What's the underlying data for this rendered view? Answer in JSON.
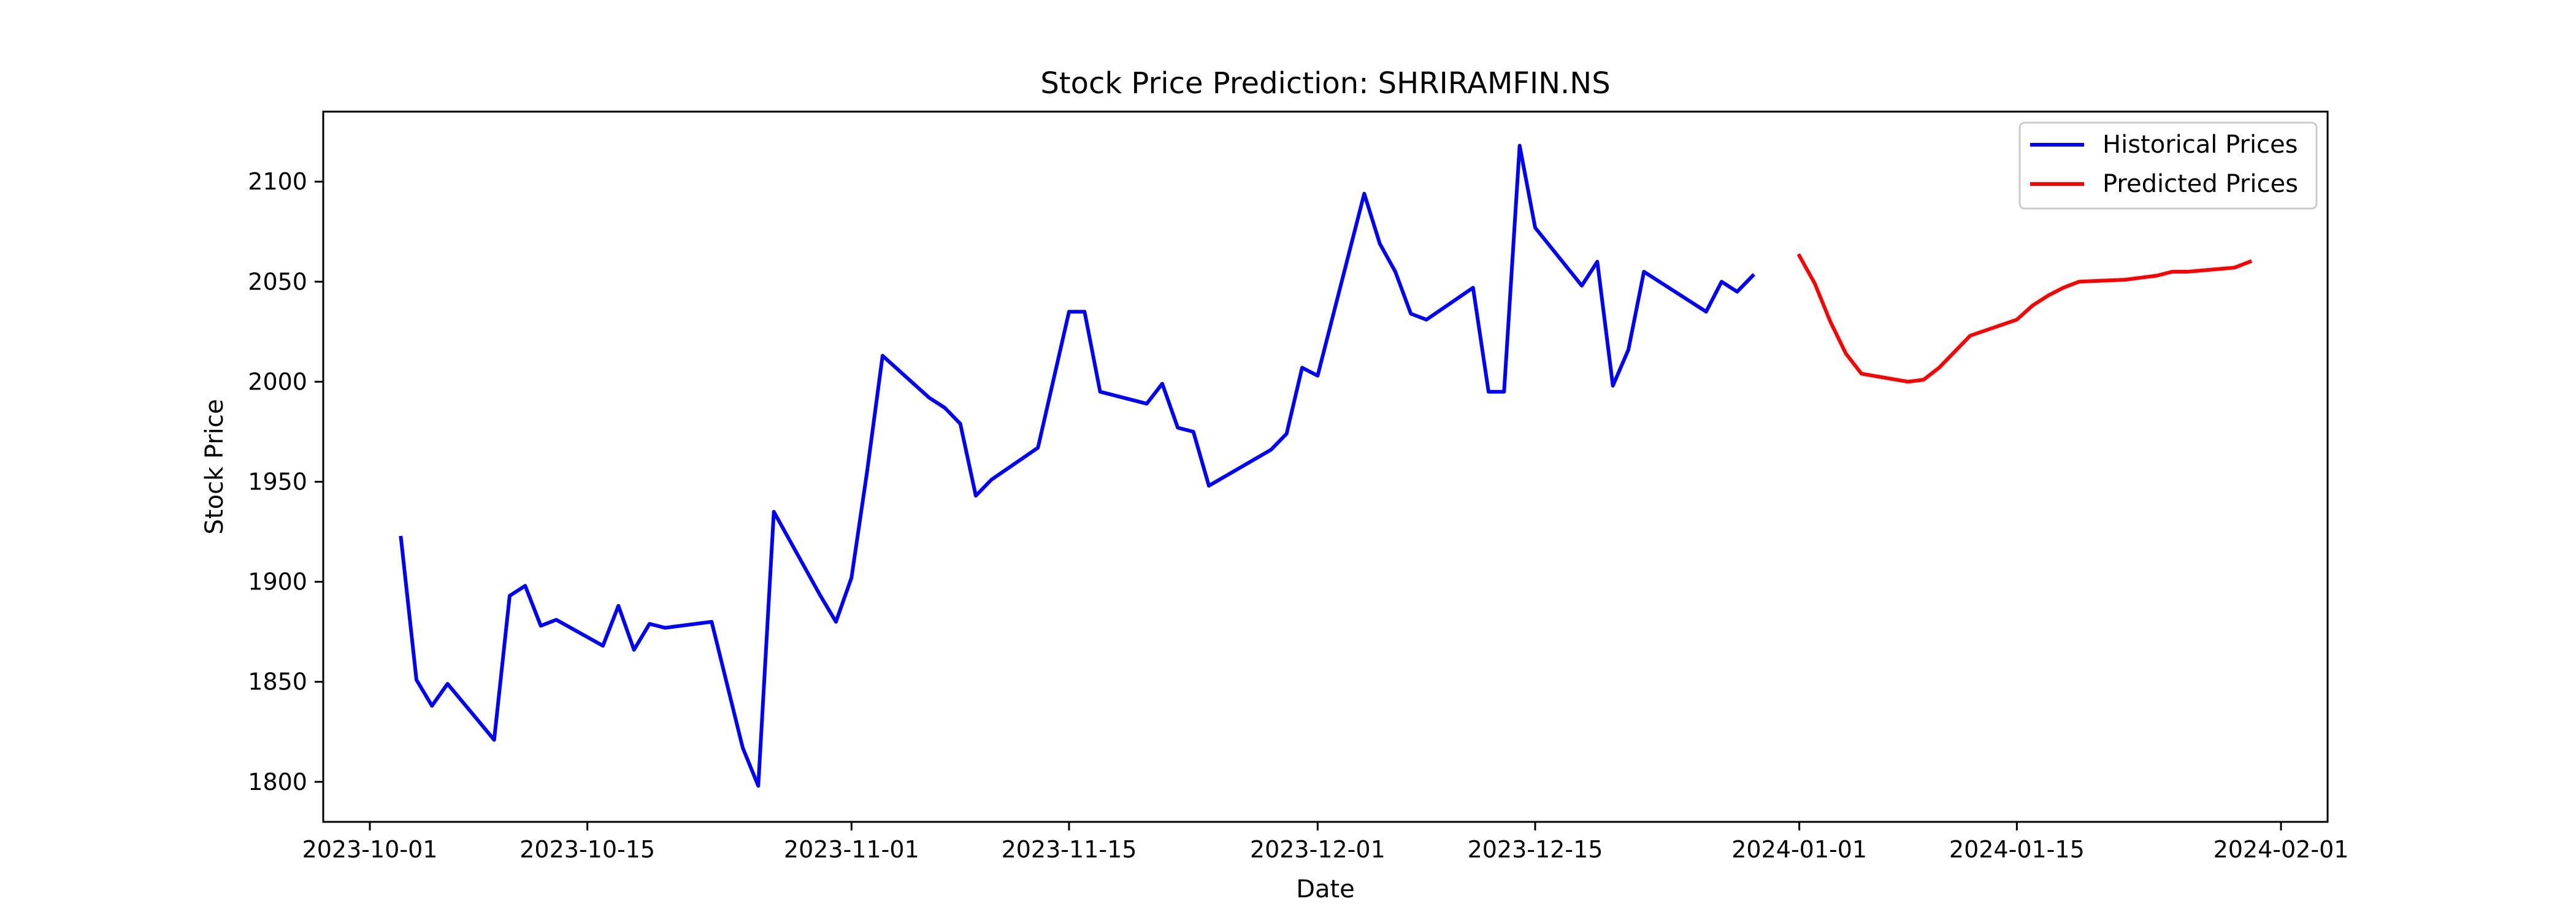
{
  "chart_data": {
    "type": "line",
    "title": "Stock Price Prediction: SHRIRAMFIN.NS",
    "xlabel": "Date",
    "ylabel": "Stock Price",
    "xlim": [
      "2023-09-28",
      "2024-02-04"
    ],
    "ylim": [
      1780,
      2135
    ],
    "x_ticks": [
      "2023-10-01",
      "2023-10-15",
      "2023-11-01",
      "2023-11-15",
      "2023-12-01",
      "2023-12-15",
      "2024-01-01",
      "2024-01-15",
      "2024-02-01"
    ],
    "y_ticks": [
      1800,
      1850,
      1900,
      1950,
      2000,
      2050,
      2100
    ],
    "grid": false,
    "legend_position": "top-right",
    "series": [
      {
        "name": "Historical Prices",
        "color": "#0000ff",
        "points": [
          [
            "2023-10-03",
            1922
          ],
          [
            "2023-10-04",
            1851
          ],
          [
            "2023-10-05",
            1838
          ],
          [
            "2023-10-06",
            1849
          ],
          [
            "2023-10-09",
            1821
          ],
          [
            "2023-10-10",
            1893
          ],
          [
            "2023-10-11",
            1898
          ],
          [
            "2023-10-12",
            1878
          ],
          [
            "2023-10-13",
            1881
          ],
          [
            "2023-10-16",
            1868
          ],
          [
            "2023-10-17",
            1888
          ],
          [
            "2023-10-18",
            1866
          ],
          [
            "2023-10-19",
            1879
          ],
          [
            "2023-10-20",
            1877
          ],
          [
            "2023-10-23",
            1880
          ],
          [
            "2023-10-25",
            1817
          ],
          [
            "2023-10-26",
            1798
          ],
          [
            "2023-10-27",
            1935
          ],
          [
            "2023-10-30",
            1893
          ],
          [
            "2023-10-31",
            1880
          ],
          [
            "2023-11-01",
            1902
          ],
          [
            "2023-11-02",
            1955
          ],
          [
            "2023-11-03",
            2013
          ],
          [
            "2023-11-06",
            1992
          ],
          [
            "2023-11-07",
            1987
          ],
          [
            "2023-11-08",
            1979
          ],
          [
            "2023-11-09",
            1943
          ],
          [
            "2023-11-10",
            1951
          ],
          [
            "2023-11-13",
            1967
          ],
          [
            "2023-11-15",
            2035
          ],
          [
            "2023-11-16",
            2035
          ],
          [
            "2023-11-17",
            1995
          ],
          [
            "2023-11-20",
            1989
          ],
          [
            "2023-11-21",
            1999
          ],
          [
            "2023-11-22",
            1977
          ],
          [
            "2023-11-23",
            1975
          ],
          [
            "2023-11-24",
            1948
          ],
          [
            "2023-11-28",
            1966
          ],
          [
            "2023-11-29",
            1974
          ],
          [
            "2023-11-30",
            2007
          ],
          [
            "2023-12-01",
            2003
          ],
          [
            "2023-12-04",
            2094
          ],
          [
            "2023-12-05",
            2069
          ],
          [
            "2023-12-06",
            2055
          ],
          [
            "2023-12-07",
            2034
          ],
          [
            "2023-12-08",
            2031
          ],
          [
            "2023-12-11",
            2047
          ],
          [
            "2023-12-12",
            1995
          ],
          [
            "2023-12-13",
            1995
          ],
          [
            "2023-12-14",
            2118
          ],
          [
            "2023-12-15",
            2077
          ],
          [
            "2023-12-18",
            2048
          ],
          [
            "2023-12-19",
            2060
          ],
          [
            "2023-12-20",
            1998
          ],
          [
            "2023-12-21",
            2016
          ],
          [
            "2023-12-22",
            2055
          ],
          [
            "2023-12-26",
            2035
          ],
          [
            "2023-12-27",
            2050
          ],
          [
            "2023-12-28",
            2045
          ],
          [
            "2023-12-29",
            2053
          ]
        ]
      },
      {
        "name": "Predicted Prices",
        "color": "#ff0000",
        "points": [
          [
            "2024-01-01",
            2063
          ],
          [
            "2024-01-02",
            2049
          ],
          [
            "2024-01-03",
            2030
          ],
          [
            "2024-01-04",
            2014
          ],
          [
            "2024-01-05",
            2004
          ],
          [
            "2024-01-08",
            2000
          ],
          [
            "2024-01-09",
            2001
          ],
          [
            "2024-01-10",
            2007
          ],
          [
            "2024-01-11",
            2015
          ],
          [
            "2024-01-12",
            2023
          ],
          [
            "2024-01-15",
            2031
          ],
          [
            "2024-01-16",
            2038
          ],
          [
            "2024-01-17",
            2043
          ],
          [
            "2024-01-18",
            2047
          ],
          [
            "2024-01-19",
            2050
          ],
          [
            "2024-01-22",
            2051
          ],
          [
            "2024-01-23",
            2052
          ],
          [
            "2024-01-24",
            2053
          ],
          [
            "2024-01-25",
            2055
          ],
          [
            "2024-01-26",
            2055
          ],
          [
            "2024-01-29",
            2057
          ],
          [
            "2024-01-30",
            2060
          ]
        ]
      }
    ]
  }
}
